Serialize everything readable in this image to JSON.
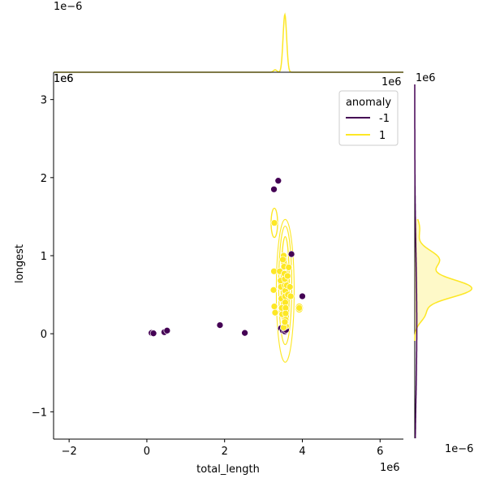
{
  "chart_data": {
    "type": "scatter",
    "subtype": "seaborn-jointplot-kde-scatter",
    "xlabel": "total_length",
    "ylabel": "longest",
    "x_offset_label": "1e6",
    "y_offset_label": "1e6",
    "top_marginal_offset_label": "1e−6",
    "top_marginal_x_offset_label": "1e6",
    "right_marginal_offset_label": "1e6",
    "right_marginal_x_offset_label": "1e−6",
    "xlim": [
      -2.4,
      6.6
    ],
    "ylim": [
      -1.35,
      3.35
    ],
    "xticks": [
      -2,
      0,
      2,
      4,
      6
    ],
    "yticks": [
      -1,
      0,
      1,
      2,
      3
    ],
    "xtick_labels": [
      "−2",
      "0",
      "2",
      "4",
      "6"
    ],
    "ytick_labels": [
      "−1",
      "0",
      "1",
      "2",
      "3"
    ],
    "grid": false,
    "legend": {
      "title": "anomaly",
      "placement": "top-right",
      "entries": [
        {
          "label": "-1",
          "color": "#440154"
        },
        {
          "label": "1",
          "color": "#fde725"
        }
      ]
    },
    "series": [
      {
        "name": "-1",
        "color": "#440154",
        "points": [
          [
            0.12,
            0.01
          ],
          [
            0.17,
            0.005
          ],
          [
            0.45,
            0.02
          ],
          [
            0.52,
            0.04
          ],
          [
            1.88,
            0.11
          ],
          [
            2.52,
            0.01
          ],
          [
            3.27,
            1.85
          ],
          [
            3.38,
            1.96
          ],
          [
            3.72,
            1.02
          ],
          [
            4.0,
            0.48
          ],
          [
            3.45,
            0.07
          ],
          [
            3.5,
            0.04
          ],
          [
            3.55,
            0.03
          ],
          [
            3.58,
            0.05
          ]
        ]
      },
      {
        "name": "1",
        "color": "#fde725",
        "points": [
          [
            3.28,
            1.42
          ],
          [
            3.27,
            0.8
          ],
          [
            3.26,
            0.56
          ],
          [
            3.28,
            0.35
          ],
          [
            3.3,
            0.27
          ],
          [
            3.42,
            0.8
          ],
          [
            3.44,
            0.68
          ],
          [
            3.45,
            0.6
          ],
          [
            3.46,
            0.45
          ],
          [
            3.47,
            0.33
          ],
          [
            3.48,
            0.25
          ],
          [
            3.52,
            1.0
          ],
          [
            3.52,
            0.92
          ],
          [
            3.53,
            0.86
          ],
          [
            3.54,
            0.77
          ],
          [
            3.55,
            0.7
          ],
          [
            3.55,
            0.62
          ],
          [
            3.56,
            0.55
          ],
          [
            3.56,
            0.48
          ],
          [
            3.56,
            0.4
          ],
          [
            3.57,
            0.33
          ],
          [
            3.57,
            0.26
          ],
          [
            3.57,
            0.18
          ],
          [
            3.58,
            0.1
          ],
          [
            3.6,
            0.62
          ],
          [
            3.62,
            0.74
          ],
          [
            3.63,
            0.5
          ],
          [
            3.65,
            0.85
          ],
          [
            3.68,
            0.6
          ],
          [
            3.7,
            0.48
          ],
          [
            3.92,
            0.33
          ],
          [
            3.5,
            0.95
          ],
          [
            3.52,
            0.08
          ],
          [
            3.55,
            0.15
          ]
        ]
      }
    ],
    "marginal_x_density": {
      "color": "#fde725",
      "description_peak_x": 3.55
    },
    "marginal_y_density": {
      "series": [
        {
          "name": "1",
          "color": "#fde725",
          "fill": true
        },
        {
          "name": "-1",
          "color": "#440154",
          "fill": false
        }
      ]
    }
  }
}
